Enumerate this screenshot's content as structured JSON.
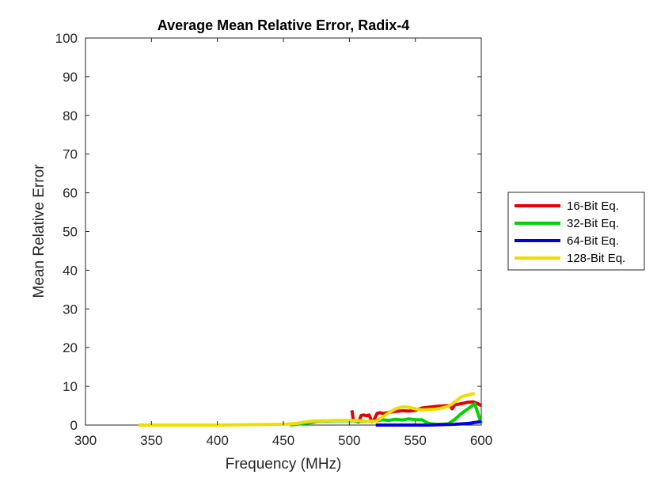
{
  "chart_data": {
    "type": "line",
    "title": "Average Mean Relative Error, Radix-4",
    "xlabel": "Frequency (MHz)",
    "ylabel": "Mean Relative Error",
    "xlim": [
      300,
      600
    ],
    "ylim": [
      0,
      100
    ],
    "x_ticks": [
      "300",
      "350",
      "400",
      "450",
      "500",
      "550",
      "600"
    ],
    "y_ticks": [
      "0",
      "10",
      "20",
      "30",
      "40",
      "50",
      "60",
      "70",
      "80",
      "90",
      "100"
    ],
    "grid": false,
    "legend_position": "outside-right",
    "series": [
      {
        "name": "16-Bit Eq.",
        "color": "#e60000",
        "x": [
          502,
          503,
          505,
          507,
          509,
          511,
          513,
          515,
          517,
          519,
          521,
          523,
          526,
          530,
          535,
          540,
          545,
          550,
          555,
          560,
          565,
          570,
          574,
          576,
          578,
          580,
          583,
          586,
          590,
          594,
          597,
          600
        ],
        "y": [
          3.8,
          1.2,
          1.0,
          0.8,
          2.5,
          2.6,
          2.4,
          2.6,
          0.9,
          1.5,
          3.0,
          3.2,
          3.0,
          3.3,
          3.5,
          3.7,
          3.6,
          3.8,
          4.4,
          4.6,
          4.8,
          4.9,
          5.0,
          5.0,
          4.2,
          5.3,
          5.4,
          5.6,
          5.9,
          6.0,
          5.6,
          5.0
        ]
      },
      {
        "name": "32-Bit Eq.",
        "color": "#00d400",
        "x": [
          455,
          460,
          465,
          470,
          475,
          480,
          490,
          500,
          510,
          520,
          525,
          530,
          535,
          540,
          545,
          550,
          555,
          560,
          565,
          570,
          575,
          580,
          585,
          590,
          595,
          600
        ],
        "y": [
          0.0,
          0.2,
          0.4,
          0.6,
          0.9,
          1.0,
          1.1,
          1.1,
          1.0,
          1.0,
          1.4,
          1.2,
          1.5,
          1.3,
          1.6,
          1.4,
          1.4,
          0.4,
          0.2,
          0.2,
          0.3,
          1.5,
          3.0,
          4.2,
          5.5,
          0.5
        ]
      },
      {
        "name": "64-Bit Eq.",
        "color": "#0000e0",
        "x": [
          520,
          540,
          560,
          570,
          580,
          590,
          600
        ],
        "y": [
          0.0,
          0.0,
          0.0,
          0.1,
          0.2,
          0.4,
          0.9
        ]
      },
      {
        "name": "128-Bit Eq.",
        "color": "#eedd00",
        "x": [
          340,
          350,
          400,
          450,
          460,
          470,
          480,
          490,
          500,
          510,
          520,
          525,
          530,
          535,
          540,
          545,
          550,
          555,
          560,
          565,
          570,
          575,
          580,
          585,
          590,
          595
        ],
        "y": [
          0.0,
          0.0,
          0.0,
          0.2,
          0.4,
          1.0,
          1.1,
          1.2,
          1.2,
          1.1,
          1.0,
          2.0,
          3.2,
          4.2,
          4.7,
          4.6,
          4.2,
          3.9,
          4.0,
          4.1,
          4.4,
          4.8,
          6.0,
          7.3,
          7.8,
          8.2
        ]
      }
    ]
  }
}
